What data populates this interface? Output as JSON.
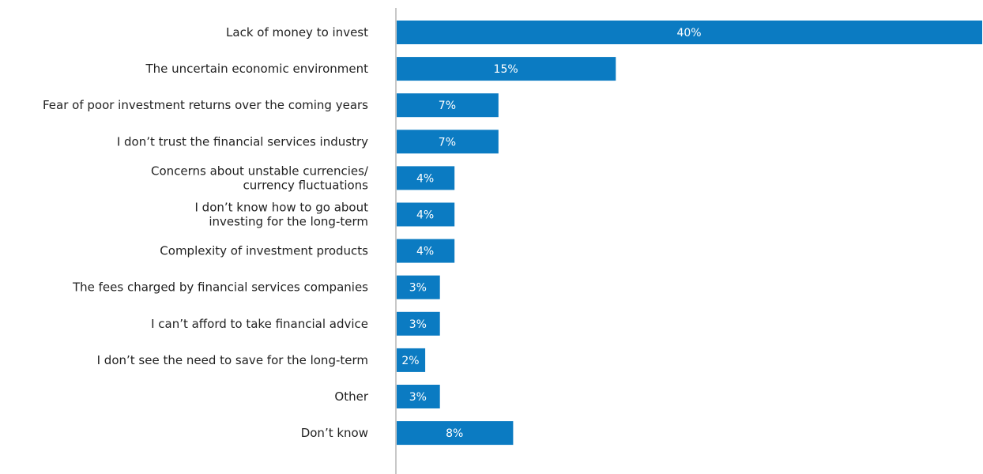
{
  "chart_data": {
    "type": "bar",
    "orientation": "horizontal",
    "categories": [
      [
        "Lack of money to invest"
      ],
      [
        "The uncertain economic environment"
      ],
      [
        "Fear of poor investment returns over the coming years"
      ],
      [
        "I don’t trust the financial services industry"
      ],
      [
        "Concerns about unstable currencies/",
        "currency fluctuations"
      ],
      [
        "I don’t know how to go about",
        "investing for the long-term"
      ],
      [
        "Complexity of investment products"
      ],
      [
        "The fees charged by financial services companies"
      ],
      [
        "I can’t afford to take financial advice"
      ],
      [
        "I don’t see the need to save for the long-term"
      ],
      [
        "Other"
      ],
      [
        "Don’t know"
      ]
    ],
    "values": [
      40,
      15,
      7,
      7,
      4,
      4,
      4,
      3,
      3,
      2,
      3,
      8
    ],
    "data_labels": [
      "40%",
      "15%",
      "7%",
      "7%",
      "4%",
      "4%",
      "4%",
      "3%",
      "3%",
      "2%",
      "3%",
      "8%"
    ],
    "xlim": [
      0,
      40
    ],
    "grid": false,
    "legend": "none",
    "bar_color": "#0b7bc2",
    "baseline_color": "#c8c8c8",
    "label_color": "#222222",
    "value_label_color": "#ffffff"
  }
}
